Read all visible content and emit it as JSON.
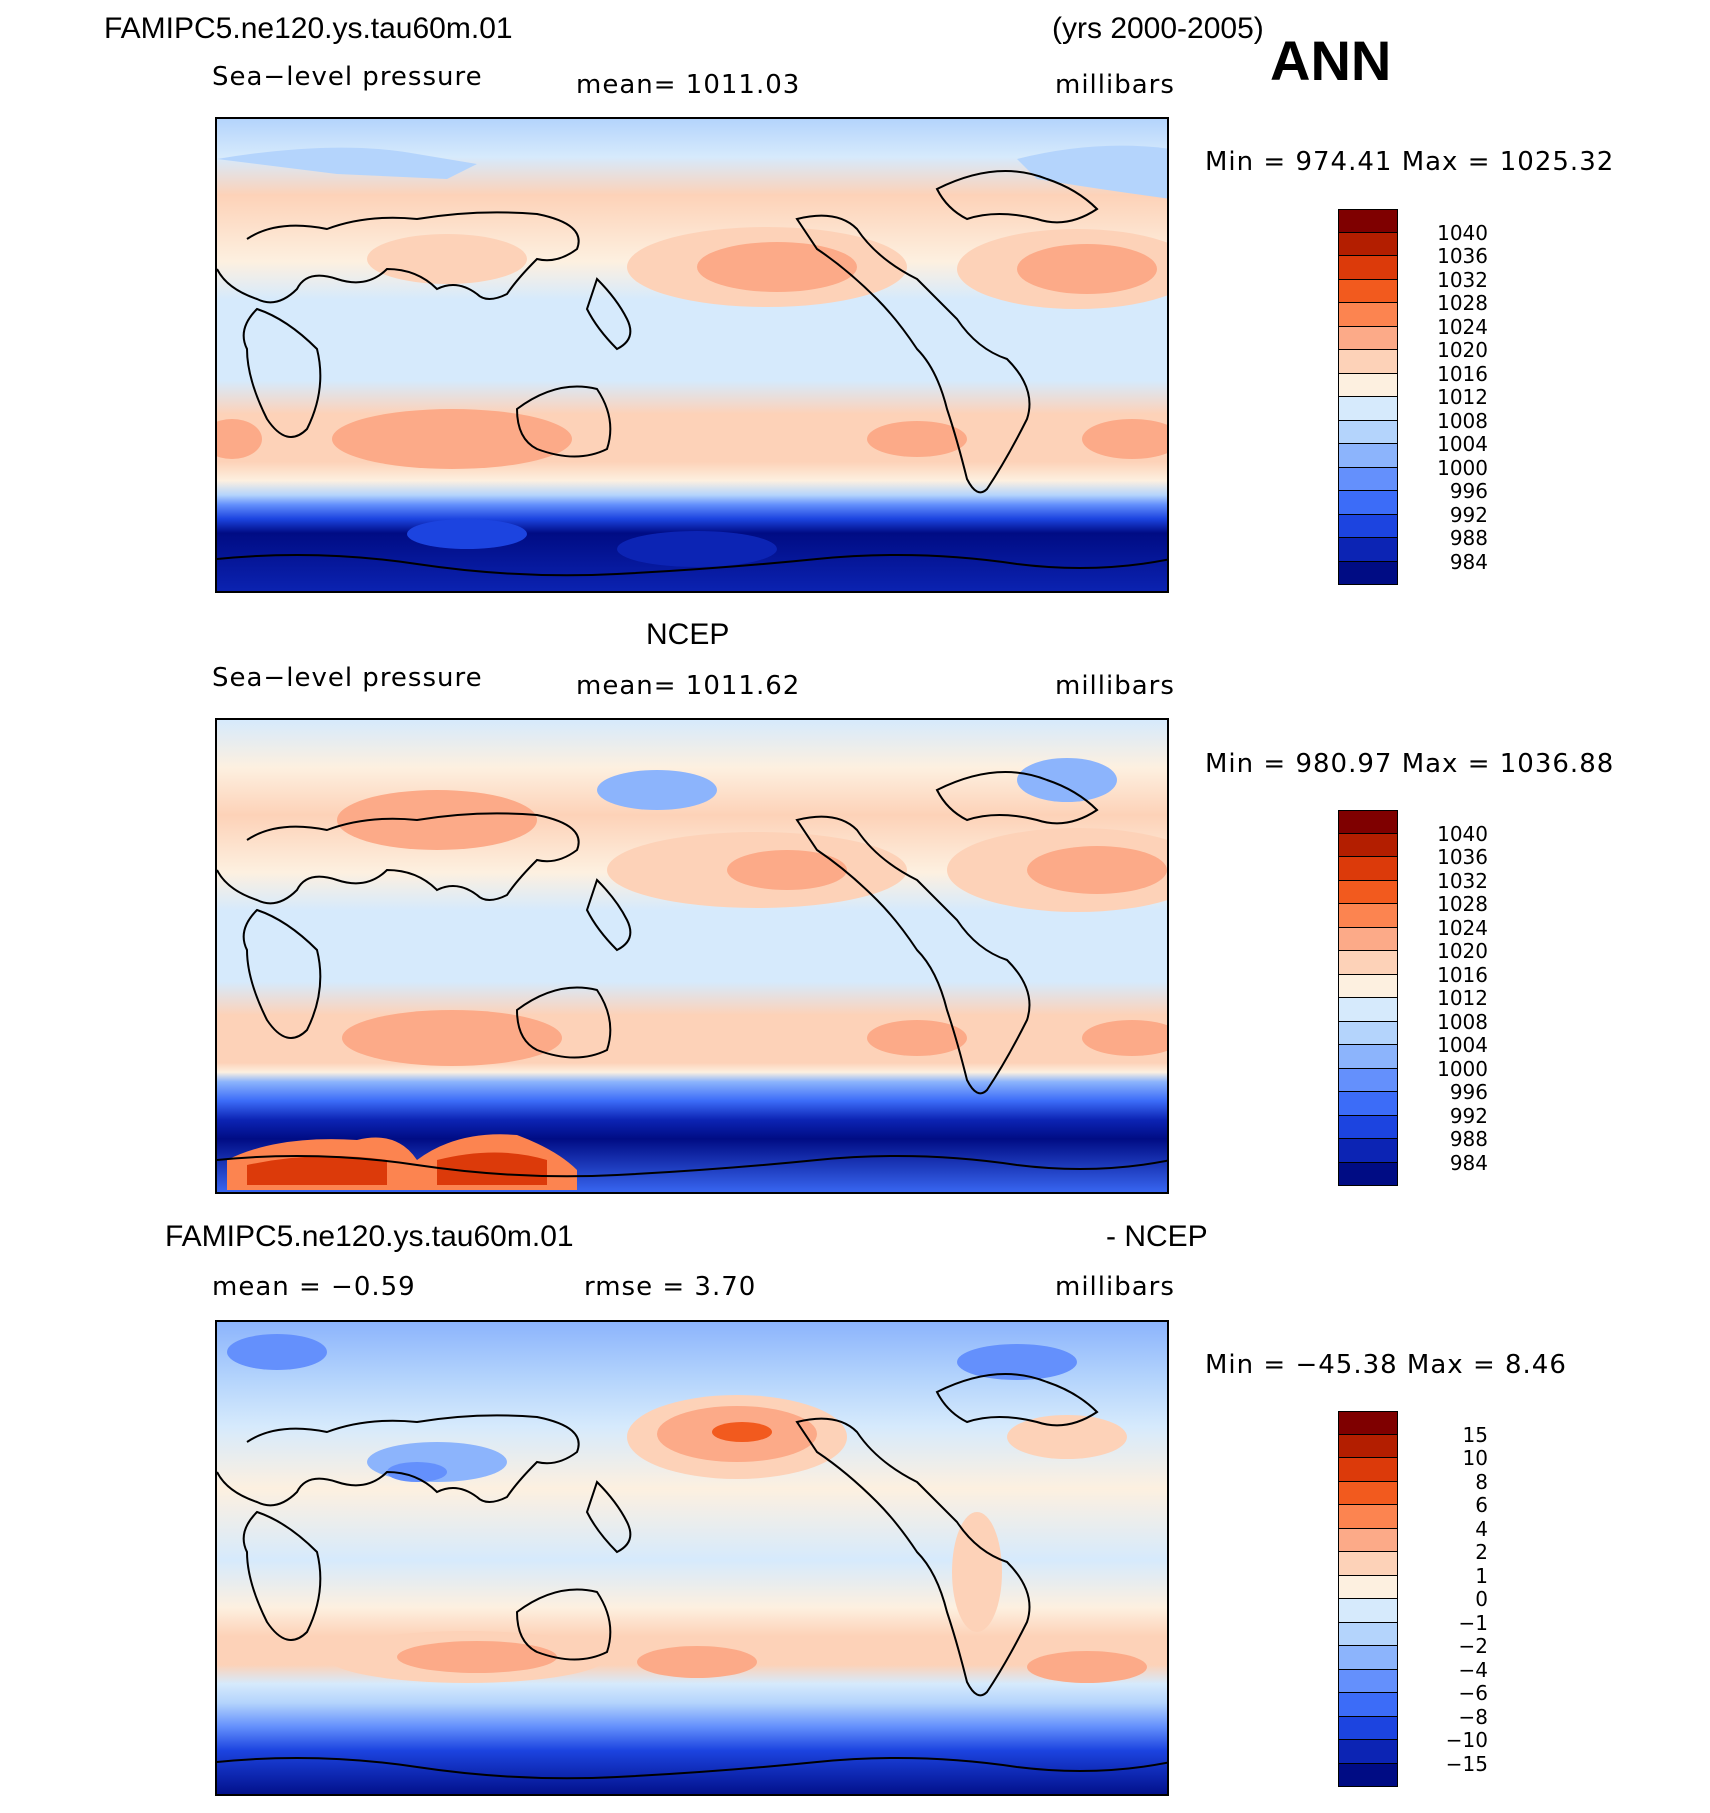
{
  "header": {
    "case_name": "FAMIPC5.ne120.ys.tau60m.01",
    "years": "(yrs 2000-2005)",
    "season": "ANN"
  },
  "panels": [
    {
      "id": "model",
      "title": "",
      "variable": "Sea−level pressure",
      "mean_text": "mean=  1011.03",
      "units": "millibars",
      "minmax": "Min  =  974.41  Max  =  1025.32",
      "levels": [
        "1040",
        "1036",
        "1032",
        "1028",
        "1024",
        "1020",
        "1016",
        "1012",
        "1008",
        "1004",
        "1000",
        "996",
        "992",
        "988",
        "984"
      ]
    },
    {
      "id": "obs",
      "title": "NCEP",
      "variable": "Sea−level pressure",
      "mean_text": "mean=  1011.62",
      "units": "millibars",
      "minmax": "Min  =  980.97  Max  =  1036.88",
      "levels": [
        "1040",
        "1036",
        "1032",
        "1028",
        "1024",
        "1020",
        "1016",
        "1012",
        "1008",
        "1004",
        "1000",
        "996",
        "992",
        "988",
        "984"
      ]
    },
    {
      "id": "diff",
      "title_left": "FAMIPC5.ne120.ys.tau60m.01",
      "title_right": "- NCEP",
      "mean_text": "mean  =   −0.59",
      "rmse_text": "rmse  =      3.70",
      "units": "millibars",
      "minmax": "Min  =  −45.38  Max  =     8.46",
      "levels": [
        "15",
        "10",
        "8",
        "6",
        "4",
        "2",
        "1",
        "0",
        "−1",
        "−2",
        "−4",
        "−6",
        "−8",
        "−10",
        "−15"
      ]
    }
  ],
  "colors": {
    "scale": [
      "#7f0000",
      "#b31e00",
      "#dc3a0a",
      "#f25a1e",
      "#fc8450",
      "#fcaa88",
      "#fdd2b8",
      "#fdf0e0",
      "#d6eafc",
      "#b4d4fc",
      "#8cb4fc",
      "#6490fc",
      "#3c6cf8",
      "#1c44e0",
      "#0c24b4",
      "#000c84"
    ],
    "land_outline": "#000000"
  },
  "icons": {
    "coastline": "coastline-outline"
  }
}
